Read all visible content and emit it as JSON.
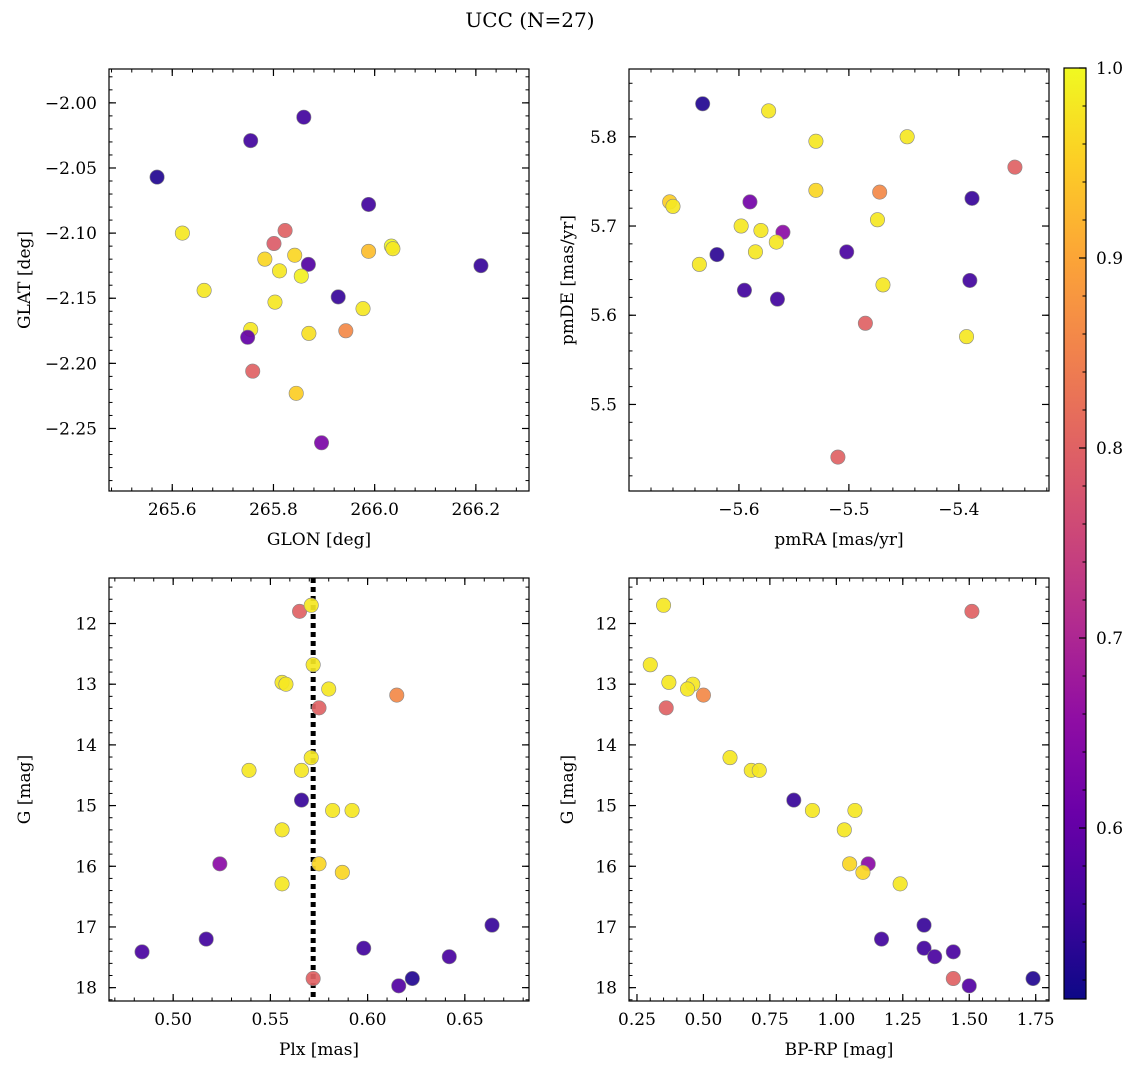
{
  "title": "UCC (N=27)",
  "colorbar": {
    "min": 0.51,
    "max": 1.0,
    "ticks": [
      0.6,
      0.7,
      0.8,
      0.9,
      1.0
    ],
    "tick_labels": [
      "0.6",
      "0.7",
      "0.8",
      "0.9",
      "1.0"
    ],
    "colormap": "plasma"
  },
  "chart_data": [
    {
      "type": "scatter",
      "xlabel": "GLON [deg]",
      "ylabel": "GLAT [deg]",
      "xlim": [
        265.475,
        266.305
      ],
      "ylim": [
        -2.298,
        -1.974
      ],
      "y_inverted": false,
      "xticks": [
        265.6,
        265.8,
        266.0,
        266.2
      ],
      "xtick_labels": [
        "265.6",
        "265.8",
        "266.0",
        "266.2"
      ],
      "yticks": [
        -2.0,
        -2.05,
        -2.1,
        -2.15,
        -2.2,
        -2.25
      ],
      "ytick_labels": [
        "−2.00",
        "−2.05",
        "−2.10",
        "−2.15",
        "−2.20",
        "−2.25"
      ],
      "points": [
        {
          "x": 265.57,
          "y": -2.057,
          "c": 0.53
        },
        {
          "x": 265.755,
          "y": -2.029,
          "c": 0.56
        },
        {
          "x": 265.86,
          "y": -2.011,
          "c": 0.56
        },
        {
          "x": 265.988,
          "y": -2.078,
          "c": 0.56
        },
        {
          "x": 265.62,
          "y": -2.1,
          "c": 0.98
        },
        {
          "x": 265.823,
          "y": -2.098,
          "c": 0.8
        },
        {
          "x": 265.801,
          "y": -2.108,
          "c": 0.79
        },
        {
          "x": 265.783,
          "y": -2.12,
          "c": 0.96
        },
        {
          "x": 265.812,
          "y": -2.129,
          "c": 0.98
        },
        {
          "x": 265.842,
          "y": -2.117,
          "c": 0.96
        },
        {
          "x": 265.869,
          "y": -2.124,
          "c": 0.58
        },
        {
          "x": 265.855,
          "y": -2.133,
          "c": 0.99
        },
        {
          "x": 265.988,
          "y": -2.114,
          "c": 0.93
        },
        {
          "x": 266.033,
          "y": -2.11,
          "c": 1.0
        },
        {
          "x": 266.036,
          "y": -2.112,
          "c": 0.98
        },
        {
          "x": 266.21,
          "y": -2.125,
          "c": 0.55
        },
        {
          "x": 265.663,
          "y": -2.144,
          "c": 0.98
        },
        {
          "x": 265.803,
          "y": -2.153,
          "c": 0.98
        },
        {
          "x": 265.928,
          "y": -2.149,
          "c": 0.55
        },
        {
          "x": 265.977,
          "y": -2.158,
          "c": 0.98
        },
        {
          "x": 265.755,
          "y": -2.174,
          "c": 0.98
        },
        {
          "x": 265.749,
          "y": -2.18,
          "c": 0.6
        },
        {
          "x": 265.87,
          "y": -2.177,
          "c": 0.97
        },
        {
          "x": 265.943,
          "y": -2.175,
          "c": 0.86
        },
        {
          "x": 265.759,
          "y": -2.206,
          "c": 0.8
        },
        {
          "x": 265.845,
          "y": -2.223,
          "c": 0.95
        },
        {
          "x": 265.895,
          "y": -2.261,
          "c": 0.63
        }
      ]
    },
    {
      "type": "scatter",
      "xlabel": "pmRA [mas/yr]",
      "ylabel": "pmDE [mas/yr]",
      "xlim": [
        -5.7,
        -5.318
      ],
      "ylim": [
        5.403,
        5.876
      ],
      "y_inverted": false,
      "xticks": [
        -5.6,
        -5.5,
        -5.4
      ],
      "xtick_labels": [
        "−5.6",
        "−5.5",
        "−5.4"
      ],
      "yticks": [
        5.5,
        5.6,
        5.7,
        5.8
      ],
      "ytick_labels": [
        "5.5",
        "5.6",
        "5.7",
        "5.8"
      ],
      "points": [
        {
          "x": -5.633,
          "y": 5.837,
          "c": 0.53
        },
        {
          "x": -5.573,
          "y": 5.829,
          "c": 0.98
        },
        {
          "x": -5.53,
          "y": 5.795,
          "c": 0.98
        },
        {
          "x": -5.447,
          "y": 5.8,
          "c": 0.98
        },
        {
          "x": -5.349,
          "y": 5.766,
          "c": 0.8
        },
        {
          "x": -5.53,
          "y": 5.74,
          "c": 0.96
        },
        {
          "x": -5.472,
          "y": 5.738,
          "c": 0.86
        },
        {
          "x": -5.388,
          "y": 5.731,
          "c": 0.55
        },
        {
          "x": -5.663,
          "y": 5.727,
          "c": 0.95
        },
        {
          "x": -5.66,
          "y": 5.722,
          "c": 0.98
        },
        {
          "x": -5.59,
          "y": 5.727,
          "c": 0.62
        },
        {
          "x": -5.474,
          "y": 5.707,
          "c": 0.98
        },
        {
          "x": -5.598,
          "y": 5.7,
          "c": 0.98
        },
        {
          "x": -5.58,
          "y": 5.695,
          "c": 0.98
        },
        {
          "x": -5.56,
          "y": 5.693,
          "c": 0.65
        },
        {
          "x": -5.566,
          "y": 5.682,
          "c": 0.98
        },
        {
          "x": -5.585,
          "y": 5.671,
          "c": 0.98
        },
        {
          "x": -5.62,
          "y": 5.668,
          "c": 0.54
        },
        {
          "x": -5.502,
          "y": 5.671,
          "c": 0.57
        },
        {
          "x": -5.636,
          "y": 5.657,
          "c": 0.98
        },
        {
          "x": -5.39,
          "y": 5.639,
          "c": 0.56
        },
        {
          "x": -5.469,
          "y": 5.634,
          "c": 0.98
        },
        {
          "x": -5.595,
          "y": 5.628,
          "c": 0.56
        },
        {
          "x": -5.565,
          "y": 5.618,
          "c": 0.56
        },
        {
          "x": -5.485,
          "y": 5.591,
          "c": 0.8
        },
        {
          "x": -5.393,
          "y": 5.576,
          "c": 0.98
        },
        {
          "x": -5.51,
          "y": 5.441,
          "c": 0.8
        }
      ]
    },
    {
      "type": "scatter",
      "xlabel": "Plx [mas]",
      "ylabel": "G [mag]",
      "xlim": [
        0.467,
        0.683
      ],
      "ylim": [
        11.25,
        18.22
      ],
      "y_inverted": true,
      "xticks": [
        0.5,
        0.55,
        0.6,
        0.65
      ],
      "xtick_labels": [
        "0.50",
        "0.55",
        "0.60",
        "0.65"
      ],
      "yticks": [
        12,
        13,
        14,
        15,
        16,
        17,
        18
      ],
      "ytick_labels": [
        "12",
        "13",
        "14",
        "15",
        "16",
        "17",
        "18"
      ],
      "vline": {
        "x": 0.572,
        "style": "dotted"
      },
      "points": [
        {
          "x": 0.565,
          "y": 11.8,
          "c": 0.8
        },
        {
          "x": 0.571,
          "y": 11.7,
          "c": 0.98
        },
        {
          "x": 0.572,
          "y": 12.68,
          "c": 0.98
        },
        {
          "x": 0.556,
          "y": 12.97,
          "c": 0.98
        },
        {
          "x": 0.558,
          "y": 13.0,
          "c": 0.98
        },
        {
          "x": 0.58,
          "y": 13.08,
          "c": 0.98
        },
        {
          "x": 0.615,
          "y": 13.18,
          "c": 0.86
        },
        {
          "x": 0.575,
          "y": 13.39,
          "c": 0.8
        },
        {
          "x": 0.571,
          "y": 14.21,
          "c": 0.98
        },
        {
          "x": 0.539,
          "y": 14.42,
          "c": 0.98
        },
        {
          "x": 0.566,
          "y": 14.42,
          "c": 0.98
        },
        {
          "x": 0.566,
          "y": 14.91,
          "c": 0.55
        },
        {
          "x": 0.582,
          "y": 15.08,
          "c": 0.98
        },
        {
          "x": 0.592,
          "y": 15.08,
          "c": 0.98
        },
        {
          "x": 0.556,
          "y": 15.4,
          "c": 0.98
        },
        {
          "x": 0.524,
          "y": 15.96,
          "c": 0.65
        },
        {
          "x": 0.575,
          "y": 15.96,
          "c": 0.96
        },
        {
          "x": 0.587,
          "y": 16.1,
          "c": 0.96
        },
        {
          "x": 0.556,
          "y": 16.29,
          "c": 0.98
        },
        {
          "x": 0.664,
          "y": 16.97,
          "c": 0.55
        },
        {
          "x": 0.517,
          "y": 17.2,
          "c": 0.56
        },
        {
          "x": 0.598,
          "y": 17.35,
          "c": 0.56
        },
        {
          "x": 0.484,
          "y": 17.41,
          "c": 0.57
        },
        {
          "x": 0.642,
          "y": 17.49,
          "c": 0.57
        },
        {
          "x": 0.572,
          "y": 17.85,
          "c": 0.8
        },
        {
          "x": 0.623,
          "y": 17.85,
          "c": 0.53
        },
        {
          "x": 0.616,
          "y": 17.97,
          "c": 0.58
        }
      ]
    },
    {
      "type": "scatter",
      "xlabel": "BP-RP [mag]",
      "ylabel": "G [mag]",
      "xlim": [
        0.22,
        1.8
      ],
      "ylim": [
        11.25,
        18.22
      ],
      "y_inverted": true,
      "xticks": [
        0.25,
        0.5,
        0.75,
        1.0,
        1.25,
        1.5,
        1.75
      ],
      "xtick_labels": [
        "0.25",
        "0.50",
        "0.75",
        "1.00",
        "1.25",
        "1.50",
        "1.75"
      ],
      "yticks": [
        12,
        13,
        14,
        15,
        16,
        17,
        18
      ],
      "ytick_labels": [
        "12",
        "13",
        "14",
        "15",
        "16",
        "17",
        "18"
      ],
      "points": [
        {
          "x": 0.35,
          "y": 11.7,
          "c": 0.98
        },
        {
          "x": 1.51,
          "y": 11.8,
          "c": 0.8
        },
        {
          "x": 0.3,
          "y": 12.68,
          "c": 0.98
        },
        {
          "x": 0.37,
          "y": 12.97,
          "c": 0.98
        },
        {
          "x": 0.46,
          "y": 13.0,
          "c": 0.98
        },
        {
          "x": 0.44,
          "y": 13.08,
          "c": 0.98
        },
        {
          "x": 0.5,
          "y": 13.18,
          "c": 0.86
        },
        {
          "x": 0.36,
          "y": 13.39,
          "c": 0.8
        },
        {
          "x": 0.6,
          "y": 14.21,
          "c": 0.98
        },
        {
          "x": 0.68,
          "y": 14.42,
          "c": 0.98
        },
        {
          "x": 0.71,
          "y": 14.42,
          "c": 0.98
        },
        {
          "x": 0.84,
          "y": 14.91,
          "c": 0.55
        },
        {
          "x": 0.91,
          "y": 15.08,
          "c": 0.98
        },
        {
          "x": 1.07,
          "y": 15.08,
          "c": 0.98
        },
        {
          "x": 1.03,
          "y": 15.4,
          "c": 0.98
        },
        {
          "x": 1.05,
          "y": 15.96,
          "c": 0.96
        },
        {
          "x": 1.12,
          "y": 15.96,
          "c": 0.65
        },
        {
          "x": 1.1,
          "y": 16.1,
          "c": 0.96
        },
        {
          "x": 1.24,
          "y": 16.29,
          "c": 0.98
        },
        {
          "x": 1.33,
          "y": 16.97,
          "c": 0.55
        },
        {
          "x": 1.17,
          "y": 17.2,
          "c": 0.56
        },
        {
          "x": 1.33,
          "y": 17.35,
          "c": 0.56
        },
        {
          "x": 1.44,
          "y": 17.41,
          "c": 0.57
        },
        {
          "x": 1.37,
          "y": 17.49,
          "c": 0.57
        },
        {
          "x": 1.44,
          "y": 17.85,
          "c": 0.8
        },
        {
          "x": 1.74,
          "y": 17.85,
          "c": 0.53
        },
        {
          "x": 1.5,
          "y": 17.97,
          "c": 0.58
        }
      ]
    }
  ]
}
